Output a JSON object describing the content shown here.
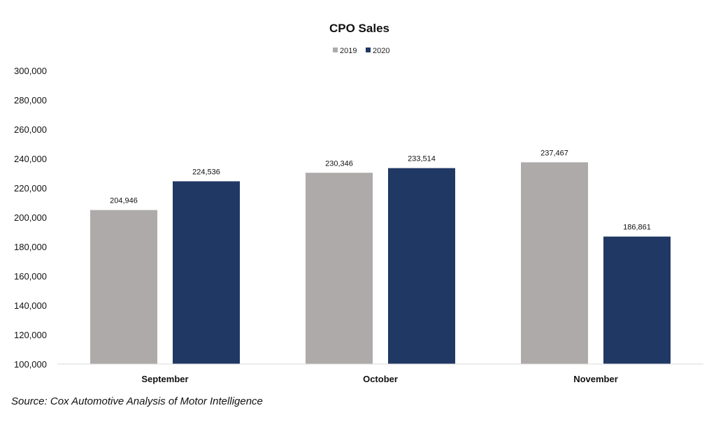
{
  "chart_data": {
    "type": "bar",
    "title": "CPO Sales",
    "categories": [
      "September",
      "October",
      "November"
    ],
    "series": [
      {
        "name": "2019",
        "color": "#AEAAAA",
        "values": [
          204946,
          230346,
          237467
        ],
        "labels": [
          "204,946",
          "230,346",
          "237,467"
        ]
      },
      {
        "name": "2020",
        "color": "#203864",
        "values": [
          224536,
          233514,
          186861
        ],
        "labels": [
          "224,536",
          "233,514",
          "186,861"
        ]
      }
    ],
    "ylim": [
      100000,
      300000
    ],
    "yticks": [
      100000,
      120000,
      140000,
      160000,
      180000,
      200000,
      220000,
      240000,
      260000,
      280000,
      300000
    ],
    "ytick_labels": [
      "100,000",
      "120,000",
      "140,000",
      "160,000",
      "180,000",
      "200,000",
      "220,000",
      "240,000",
      "260,000",
      "280,000",
      "300,000"
    ],
    "legend_position": "top",
    "grid": false,
    "xlabel": "",
    "ylabel": ""
  },
  "source": "Source: Cox Automotive Analysis of Motor Intelligence"
}
